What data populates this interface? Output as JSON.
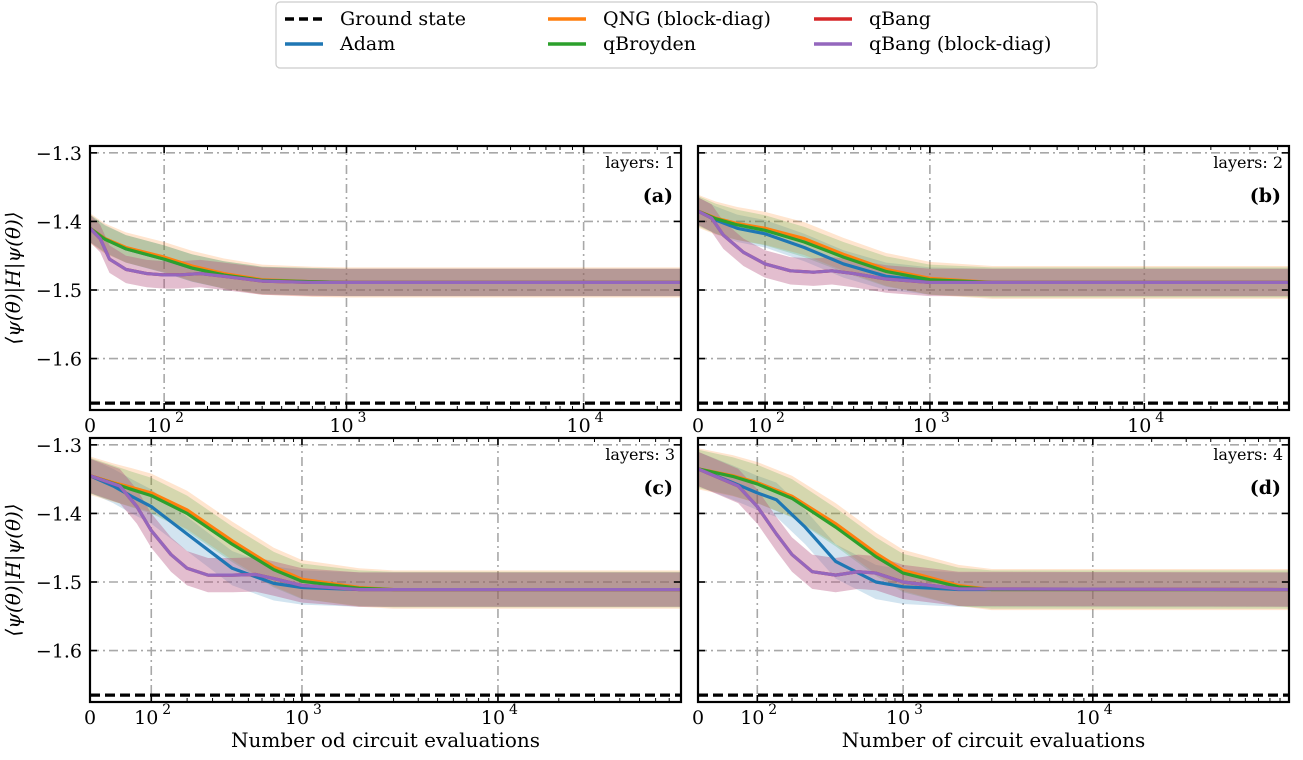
{
  "colors": {
    "ground_state": "#000000",
    "adam": "#1f77b4",
    "qng_block_diag": "#ff7f0e",
    "qbroyden": "#2ca02c",
    "qbang": "#d62728",
    "qbang_block_diag": "#9467bd",
    "grid": "#a8a8a8"
  },
  "legend": [
    {
      "key": "ground_state",
      "label": "Ground state",
      "style": "dashed"
    },
    {
      "key": "adam",
      "label": "Adam",
      "style": "solid"
    },
    {
      "key": "qng_block_diag",
      "label": "QNG (block-diag)",
      "style": "solid"
    },
    {
      "key": "qbroyden",
      "label": "qBroyden",
      "style": "solid"
    },
    {
      "key": "qbang",
      "label": "qBang",
      "style": "solid"
    },
    {
      "key": "qbang_block_diag",
      "label": "qBang (block-diag)",
      "style": "solid"
    }
  ],
  "chart_data": [
    {
      "type": "line",
      "tag": "(a)",
      "layers_label": "layers: 1",
      "xscale": "symlog",
      "xlim": [
        0,
        25000
      ],
      "ylim": [
        -1.675,
        -1.29
      ],
      "yticks": [
        -1.3,
        -1.4,
        -1.5,
        -1.6
      ],
      "ytick_labels": [
        "−1.3",
        "−1.4",
        "−1.5",
        "−1.6"
      ],
      "xticks": [
        0,
        100,
        1000,
        10000
      ],
      "xtick_labels": [
        "0",
        "10",
        "10",
        "10"
      ],
      "xtick_exponents": [
        "",
        "2",
        "3",
        "4"
      ],
      "xlabel": "",
      "ylabel": "⟨ψ(θ)|H|ψ(θ)⟩",
      "grid": true,
      "ground_state": -1.665,
      "series": [
        {
          "key": "adam",
          "x": [
            0,
            15,
            40,
            100,
            160,
            250,
            400,
            700,
            1000,
            25000
          ],
          "y": [
            -1.41,
            -1.425,
            -1.44,
            -1.455,
            -1.468,
            -1.478,
            -1.486,
            -1.488,
            -1.489,
            -1.489
          ],
          "band": 0.02
        },
        {
          "key": "qng_block_diag",
          "x": [
            0,
            15,
            40,
            100,
            160,
            250,
            400,
            700,
            1000,
            25000
          ],
          "y": [
            -1.41,
            -1.425,
            -1.438,
            -1.452,
            -1.465,
            -1.476,
            -1.485,
            -1.488,
            -1.489,
            -1.489
          ],
          "band": 0.022
        },
        {
          "key": "qbroyden",
          "x": [
            0,
            15,
            40,
            100,
            160,
            250,
            400,
            700,
            1000,
            25000
          ],
          "y": [
            -1.41,
            -1.426,
            -1.44,
            -1.455,
            -1.468,
            -1.478,
            -1.486,
            -1.488,
            -1.489,
            -1.489
          ],
          "band": 0.02
        },
        {
          "key": "qbang",
          "x": [
            0,
            10,
            20,
            40,
            70,
            100,
            130,
            180,
            250,
            400,
            700,
            25000
          ],
          "y": [
            -1.41,
            -1.425,
            -1.455,
            -1.47,
            -1.476,
            -1.478,
            -1.478,
            -1.476,
            -1.48,
            -1.487,
            -1.489,
            -1.489
          ],
          "band": 0.02
        },
        {
          "key": "qbang_block_diag",
          "x": [
            0,
            10,
            20,
            40,
            70,
            100,
            130,
            180,
            250,
            400,
            700,
            25000
          ],
          "y": [
            -1.41,
            -1.425,
            -1.455,
            -1.47,
            -1.476,
            -1.478,
            -1.478,
            -1.476,
            -1.48,
            -1.487,
            -1.489,
            -1.489
          ],
          "band": 0.02
        }
      ]
    },
    {
      "type": "line",
      "tag": "(b)",
      "layers_label": "layers: 2",
      "xscale": "symlog",
      "xlim": [
        0,
        45000
      ],
      "ylim": [
        -1.675,
        -1.29
      ],
      "yticks": [
        -1.3,
        -1.4,
        -1.5,
        -1.6
      ],
      "ytick_labels": [
        "",
        "",
        "",
        ""
      ],
      "xticks": [
        0,
        100,
        1000,
        10000
      ],
      "xtick_labels": [
        "0",
        "10",
        "10",
        "10"
      ],
      "xtick_exponents": [
        "",
        "2",
        "3",
        "4"
      ],
      "xlabel": "",
      "ylabel": "",
      "grid": true,
      "ground_state": -1.665,
      "series": [
        {
          "key": "adam",
          "x": [
            0,
            20,
            50,
            100,
            200,
            350,
            600,
            1000,
            2000,
            45000
          ],
          "y": [
            -1.385,
            -1.398,
            -1.41,
            -1.418,
            -1.438,
            -1.462,
            -1.48,
            -1.487,
            -1.489,
            -1.489
          ],
          "band": 0.02
        },
        {
          "key": "qng_block_diag",
          "x": [
            0,
            20,
            50,
            100,
            200,
            350,
            600,
            1000,
            2000,
            45000
          ],
          "y": [
            -1.385,
            -1.395,
            -1.403,
            -1.41,
            -1.425,
            -1.448,
            -1.47,
            -1.483,
            -1.489,
            -1.489
          ],
          "band": 0.024
        },
        {
          "key": "qbroyden",
          "x": [
            0,
            20,
            50,
            100,
            200,
            350,
            600,
            1000,
            2000,
            45000
          ],
          "y": [
            -1.385,
            -1.396,
            -1.405,
            -1.413,
            -1.43,
            -1.452,
            -1.473,
            -1.485,
            -1.489,
            -1.489
          ],
          "band": 0.022
        },
        {
          "key": "qbang",
          "x": [
            0,
            15,
            30,
            60,
            100,
            160,
            230,
            300,
            400,
            600,
            1000,
            45000
          ],
          "y": [
            -1.385,
            -1.395,
            -1.42,
            -1.445,
            -1.462,
            -1.472,
            -1.474,
            -1.472,
            -1.476,
            -1.484,
            -1.489,
            -1.489
          ],
          "band": 0.02
        },
        {
          "key": "qbang_block_diag",
          "x": [
            0,
            15,
            30,
            60,
            100,
            160,
            230,
            300,
            400,
            600,
            1000,
            45000
          ],
          "y": [
            -1.385,
            -1.395,
            -1.42,
            -1.445,
            -1.462,
            -1.472,
            -1.474,
            -1.472,
            -1.476,
            -1.484,
            -1.489,
            -1.489
          ],
          "band": 0.02
        }
      ]
    },
    {
      "type": "line",
      "tag": "(c)",
      "layers_label": "layers: 3",
      "xscale": "symlog",
      "xlim": [
        0,
        80000
      ],
      "ylim": [
        -1.675,
        -1.29
      ],
      "yticks": [
        -1.3,
        -1.4,
        -1.5,
        -1.6
      ],
      "ytick_labels": [
        "−1.3",
        "−1.4",
        "−1.5",
        "−1.6"
      ],
      "xticks": [
        0,
        100,
        1000,
        10000
      ],
      "xtick_labels": [
        "0",
        "10",
        "10",
        "10"
      ],
      "xtick_exponents": [
        "",
        "2",
        "3",
        "4"
      ],
      "xlabel": "Number od circuit evaluations",
      "ylabel": "⟨ψ(θ)|H|ψ(θ)⟩",
      "grid": true,
      "ground_state": -1.665,
      "series": [
        {
          "key": "adam",
          "x": [
            0,
            30,
            60,
            100,
            200,
            400,
            700,
            1000,
            2000,
            80000
          ],
          "y": [
            -1.345,
            -1.36,
            -1.375,
            -1.39,
            -1.43,
            -1.48,
            -1.502,
            -1.508,
            -1.511,
            -1.511
          ],
          "band": 0.025
        },
        {
          "key": "qng_block_diag",
          "x": [
            0,
            30,
            60,
            100,
            200,
            400,
            700,
            1000,
            2000,
            3000,
            80000
          ],
          "y": [
            -1.345,
            -1.355,
            -1.362,
            -1.37,
            -1.395,
            -1.44,
            -1.478,
            -1.496,
            -1.508,
            -1.511,
            -1.511
          ],
          "band": 0.028
        },
        {
          "key": "qbroyden",
          "x": [
            0,
            30,
            60,
            100,
            200,
            400,
            700,
            1000,
            2000,
            3000,
            80000
          ],
          "y": [
            -1.345,
            -1.356,
            -1.365,
            -1.374,
            -1.4,
            -1.445,
            -1.482,
            -1.499,
            -1.509,
            -1.511,
            -1.511
          ],
          "band": 0.026
        },
        {
          "key": "qbang",
          "x": [
            0,
            40,
            70,
            100,
            150,
            200,
            280,
            400,
            550,
            700,
            1000,
            2000,
            80000
          ],
          "y": [
            -1.345,
            -1.36,
            -1.39,
            -1.425,
            -1.46,
            -1.48,
            -1.49,
            -1.49,
            -1.489,
            -1.495,
            -1.505,
            -1.511,
            -1.511
          ],
          "band": 0.025
        },
        {
          "key": "qbang_block_diag",
          "x": [
            0,
            40,
            70,
            100,
            150,
            200,
            280,
            400,
            550,
            700,
            1000,
            2000,
            80000
          ],
          "y": [
            -1.345,
            -1.36,
            -1.39,
            -1.425,
            -1.46,
            -1.48,
            -1.49,
            -1.49,
            -1.489,
            -1.495,
            -1.505,
            -1.511,
            -1.511
          ],
          "band": 0.025
        }
      ]
    },
    {
      "type": "line",
      "tag": "(d)",
      "layers_label": "layers: 4",
      "xscale": "symlog",
      "xlim": [
        0,
        100000
      ],
      "ylim": [
        -1.675,
        -1.29
      ],
      "yticks": [
        -1.3,
        -1.4,
        -1.5,
        -1.6
      ],
      "ytick_labels": [
        "",
        "",
        "",
        ""
      ],
      "xticks": [
        0,
        100,
        1000,
        10000
      ],
      "xtick_labels": [
        "0",
        "10",
        "10",
        "10"
      ],
      "xtick_exponents": [
        "",
        "2",
        "3",
        "4"
      ],
      "xlabel": "Number of circuit evaluations",
      "ylabel": "",
      "grid": true,
      "ground_state": -1.665,
      "series": [
        {
          "key": "adam",
          "x": [
            0,
            50,
            100,
            150,
            250,
            400,
            700,
            1000,
            2000,
            100000
          ],
          "y": [
            -1.335,
            -1.355,
            -1.37,
            -1.38,
            -1.42,
            -1.47,
            -1.5,
            -1.507,
            -1.511,
            -1.511
          ],
          "band": 0.025
        },
        {
          "key": "qng_block_diag",
          "x": [
            0,
            50,
            100,
            200,
            400,
            700,
            1000,
            2000,
            3000,
            100000
          ],
          "y": [
            -1.335,
            -1.345,
            -1.355,
            -1.375,
            -1.415,
            -1.458,
            -1.483,
            -1.505,
            -1.511,
            -1.511
          ],
          "band": 0.03
        },
        {
          "key": "qbroyden",
          "x": [
            0,
            50,
            100,
            200,
            400,
            700,
            1000,
            2000,
            3000,
            100000
          ],
          "y": [
            -1.335,
            -1.346,
            -1.357,
            -1.378,
            -1.42,
            -1.463,
            -1.487,
            -1.507,
            -1.511,
            -1.511
          ],
          "band": 0.028
        },
        {
          "key": "qbang",
          "x": [
            0,
            60,
            100,
            150,
            200,
            280,
            400,
            550,
            700,
            1000,
            2000,
            100000
          ],
          "y": [
            -1.335,
            -1.36,
            -1.39,
            -1.43,
            -1.46,
            -1.485,
            -1.49,
            -1.485,
            -1.487,
            -1.5,
            -1.51,
            -1.511
          ],
          "band": 0.025
        },
        {
          "key": "qbang_block_diag",
          "x": [
            0,
            60,
            100,
            150,
            200,
            280,
            400,
            550,
            700,
            1000,
            2000,
            100000
          ],
          "y": [
            -1.335,
            -1.36,
            -1.39,
            -1.43,
            -1.46,
            -1.485,
            -1.49,
            -1.485,
            -1.487,
            -1.5,
            -1.51,
            -1.511
          ],
          "band": 0.025
        }
      ]
    }
  ]
}
